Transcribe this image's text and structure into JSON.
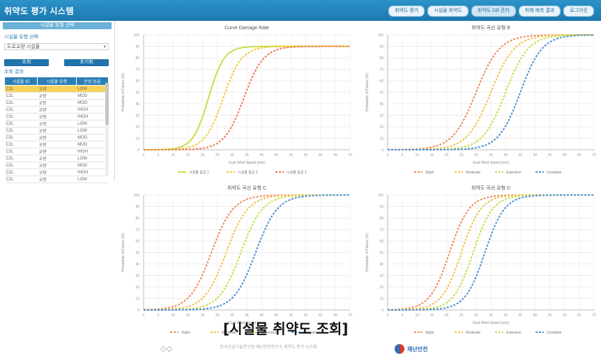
{
  "app": {
    "title": "취약도 평가 시스템"
  },
  "nav": {
    "items": [
      "취약도 평가",
      "시설물 취약도",
      "취약도 DB 관리",
      "피해 예측 결과",
      "로그아웃"
    ],
    "active_index": 2
  },
  "sidebar": {
    "panel_title": "시설물 유형 선택",
    "section1": "시설물 유형 선택",
    "select_value": "도로교량 시설물",
    "btn_search": "조회",
    "btn_reset": "초기화",
    "section2": "조회 결과",
    "table": {
      "headers": [
        "시설물 ID",
        "시설물 유형",
        "손상 등급"
      ],
      "rows": [
        [
          "C2L",
          "교량",
          "LOW"
        ],
        [
          "C2L",
          "교량",
          "MOD"
        ],
        [
          "C2L",
          "교량",
          "MOD"
        ],
        [
          "C2L",
          "교량",
          "HIGH"
        ],
        [
          "C2L",
          "교량",
          "HIGH"
        ],
        [
          "C2L",
          "교량",
          "LOW"
        ],
        [
          "C2L",
          "교량",
          "LOW"
        ],
        [
          "C2L",
          "교량",
          "MOD"
        ],
        [
          "C2L",
          "교량",
          "MOD"
        ],
        [
          "C2L",
          "교량",
          "HIGH"
        ],
        [
          "C2L",
          "교량",
          "LOW"
        ],
        [
          "C2L",
          "교량",
          "MOD"
        ],
        [
          "C2L",
          "교량",
          "HIGH"
        ],
        [
          "C2L",
          "교량",
          "LOW"
        ]
      ],
      "selected_index": 0
    }
  },
  "chart_data": [
    {
      "type": "line",
      "title": "Curve Damage Rate",
      "ylabel": "Probability of Failure (%)",
      "xlabel": "Gust Wind Speed (m/s)",
      "ylim": [
        0,
        100
      ],
      "xlim": [
        0,
        70
      ],
      "series": [
        {
          "name": "시설물 등급 1",
          "color": "#c9dd4a",
          "mid": 22,
          "k": 0.38,
          "max": 90,
          "dash": false
        },
        {
          "name": "시설물 등급 2",
          "color": "#f2c63a",
          "mid": 27,
          "k": 0.32,
          "max": 90,
          "dash": true
        },
        {
          "name": "시설물 등급 3",
          "color": "#ef7a4f",
          "mid": 34,
          "k": 0.3,
          "max": 90,
          "dash": true
        }
      ]
    },
    {
      "type": "line",
      "title": "취약도 곡선 유형 B",
      "ylabel": "Probability of Failure (%)",
      "xlabel": "Gust Wind Speed (m/s)",
      "ylim": [
        0,
        100
      ],
      "xlim": [
        0,
        70
      ],
      "series": [
        {
          "name": "Slight",
          "color": "#f08858",
          "mid": 30,
          "k": 0.25,
          "max": 100,
          "dash": true
        },
        {
          "name": "Moderate",
          "color": "#f5c04a",
          "mid": 35,
          "k": 0.25,
          "max": 100,
          "dash": true
        },
        {
          "name": "Extensive",
          "color": "#c7dc45",
          "mid": 40,
          "k": 0.26,
          "max": 100,
          "dash": true
        },
        {
          "name": "Complete",
          "color": "#4a8fd6",
          "mid": 45,
          "k": 0.27,
          "max": 100,
          "dash": true
        }
      ]
    },
    {
      "type": "line",
      "title": "취약도 곡선 유형 C",
      "ylabel": "Probability of Failure (%)",
      "xlabel": "Gust Wind Speed (m/s)",
      "ylim": [
        0,
        100
      ],
      "xlim": [
        0,
        70
      ],
      "series": [
        {
          "name": "Slight",
          "color": "#f08858",
          "mid": 23,
          "k": 0.27,
          "max": 100,
          "dash": true
        },
        {
          "name": "Moderate",
          "color": "#f5c04a",
          "mid": 28,
          "k": 0.27,
          "max": 100,
          "dash": true
        },
        {
          "name": "Extensive",
          "color": "#c7dc45",
          "mid": 33,
          "k": 0.27,
          "max": 100,
          "dash": true
        },
        {
          "name": "Complete",
          "color": "#4a8fd6",
          "mid": 38,
          "k": 0.27,
          "max": 100,
          "dash": true
        }
      ]
    },
    {
      "type": "line",
      "title": "취약도 곡선 유형 D",
      "ylabel": "Probability of Failure (%)",
      "xlabel": "Gust Wind Speed (m/s)",
      "ylim": [
        0,
        100
      ],
      "xlim": [
        0,
        70
      ],
      "series": [
        {
          "name": "Slight",
          "color": "#f08858",
          "mid": 21,
          "k": 0.3,
          "max": 100,
          "dash": true
        },
        {
          "name": "Moderate",
          "color": "#f5c04a",
          "mid": 25,
          "k": 0.3,
          "max": 100,
          "dash": true
        },
        {
          "name": "Extensive",
          "color": "#c7dc45",
          "mid": 29,
          "k": 0.3,
          "max": 100,
          "dash": true
        },
        {
          "name": "Complete",
          "color": "#4a8fd6",
          "mid": 33,
          "k": 0.3,
          "max": 100,
          "dash": true
        }
      ]
    }
  ],
  "caption": "[시설물 취약도 조회]",
  "footer": {
    "text": "한국건설기술연구원 재난안전연구소 취약도 평가 시스템",
    "logo_text": "재난안전"
  }
}
